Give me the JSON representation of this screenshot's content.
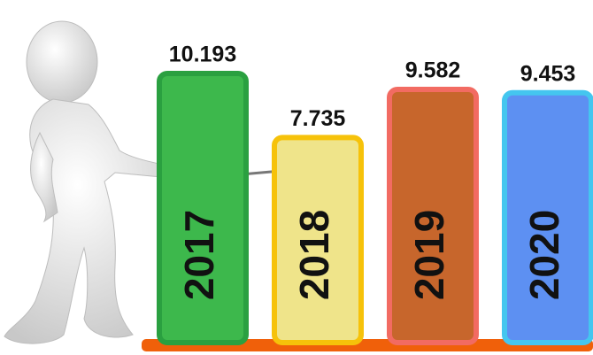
{
  "chart_data": {
    "type": "bar",
    "categories": [
      "2017",
      "2018",
      "2019",
      "2020"
    ],
    "values": [
      10193,
      7735,
      9582,
      9453
    ],
    "value_labels": [
      "10.193",
      "7.735",
      "9.582",
      "9.453"
    ],
    "colors": [
      "#3db84c",
      "#efe48a",
      "#c7662c",
      "#5d90f2"
    ],
    "border_colors": [
      "#2aa040",
      "#f6c20a",
      "#f26b62",
      "#44c6ef"
    ]
  }
}
